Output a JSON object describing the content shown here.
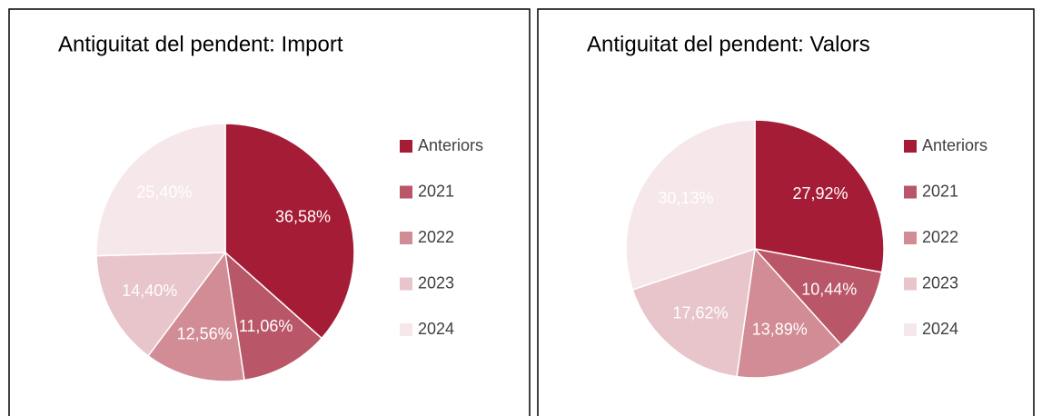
{
  "chart_data": [
    {
      "type": "pie",
      "title": "Antiguitat del pendent: Import",
      "categories": [
        "Anteriors",
        "2021",
        "2022",
        "2023",
        "2024"
      ],
      "values": [
        36.58,
        11.06,
        12.56,
        14.4,
        25.4
      ],
      "value_labels": [
        "36,58%",
        "11,06%",
        "12,56%",
        "14,40%",
        "25,40%"
      ],
      "colors": [
        "#a51c36",
        "#b95668",
        "#d28c96",
        "#e7c5ca",
        "#f6e7ea"
      ],
      "legend": "right"
    },
    {
      "type": "pie",
      "title": "Antiguitat del pendent: Valors",
      "categories": [
        "Anteriors",
        "2021",
        "2022",
        "2023",
        "2024"
      ],
      "values": [
        27.92,
        10.44,
        13.89,
        17.62,
        30.13
      ],
      "value_labels": [
        "27,92%",
        "10,44%",
        "13,89%",
        "17,62%",
        "30,13%"
      ],
      "colors": [
        "#a51c36",
        "#b95668",
        "#d28c96",
        "#e7c5ca",
        "#f6e7ea"
      ],
      "legend": "right"
    }
  ]
}
